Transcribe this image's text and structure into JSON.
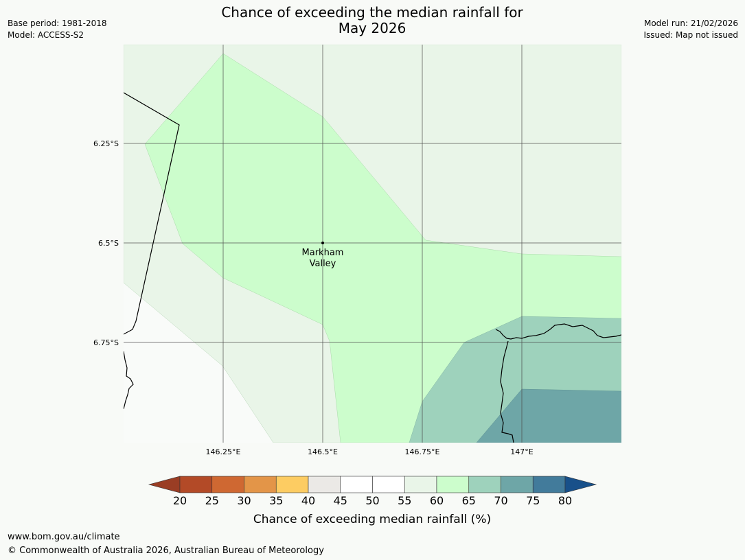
{
  "title": {
    "line1": "Chance of exceeding the median rainfall for",
    "line2": "May 2026"
  },
  "meta_left": {
    "base_period": "Base period: 1981-2018",
    "model": "Model: ACCESS-S2"
  },
  "meta_right": {
    "model_run": "Model run: 21/02/2026",
    "issued": "Issued: Map not issued"
  },
  "map": {
    "lat_ticks": [
      "6.25°S",
      "6.5°S",
      "6.75°S"
    ],
    "lon_ticks": [
      "146.25°E",
      "146.5°E",
      "146.75°E",
      "147°E"
    ],
    "place": {
      "name_line1": "Markham",
      "name_line2": "Valley",
      "lat": -6.5,
      "lon": 146.5
    },
    "class_colors": {
      "below_55": "#f9fbf9",
      "55_60": "#e9f5e8",
      "60_65": "#ccfdcc",
      "65_70": "#9ed2bc",
      "70_75": "#6ea6a7"
    }
  },
  "colorbar": {
    "title": "Chance of exceeding median rainfall (%)",
    "ticks": [
      "20",
      "25",
      "30",
      "35",
      "40",
      "45",
      "50",
      "55",
      "60",
      "65",
      "70",
      "75",
      "80"
    ],
    "under_color": "#9a3d24",
    "over_color": "#18508a",
    "colors": [
      "#b34a27",
      "#cf6832",
      "#e39548",
      "#fdcc62",
      "#ebe9e6",
      "#ffffff",
      "#ffffff",
      "#e9f5e8",
      "#ccfdcc",
      "#9ed2bc",
      "#6ea6a7",
      "#427b9b"
    ]
  },
  "footer": {
    "url": "www.bom.gov.au/climate",
    "copyright": "© Commonwealth of Australia 2026, Australian Bureau of Meteorology"
  }
}
